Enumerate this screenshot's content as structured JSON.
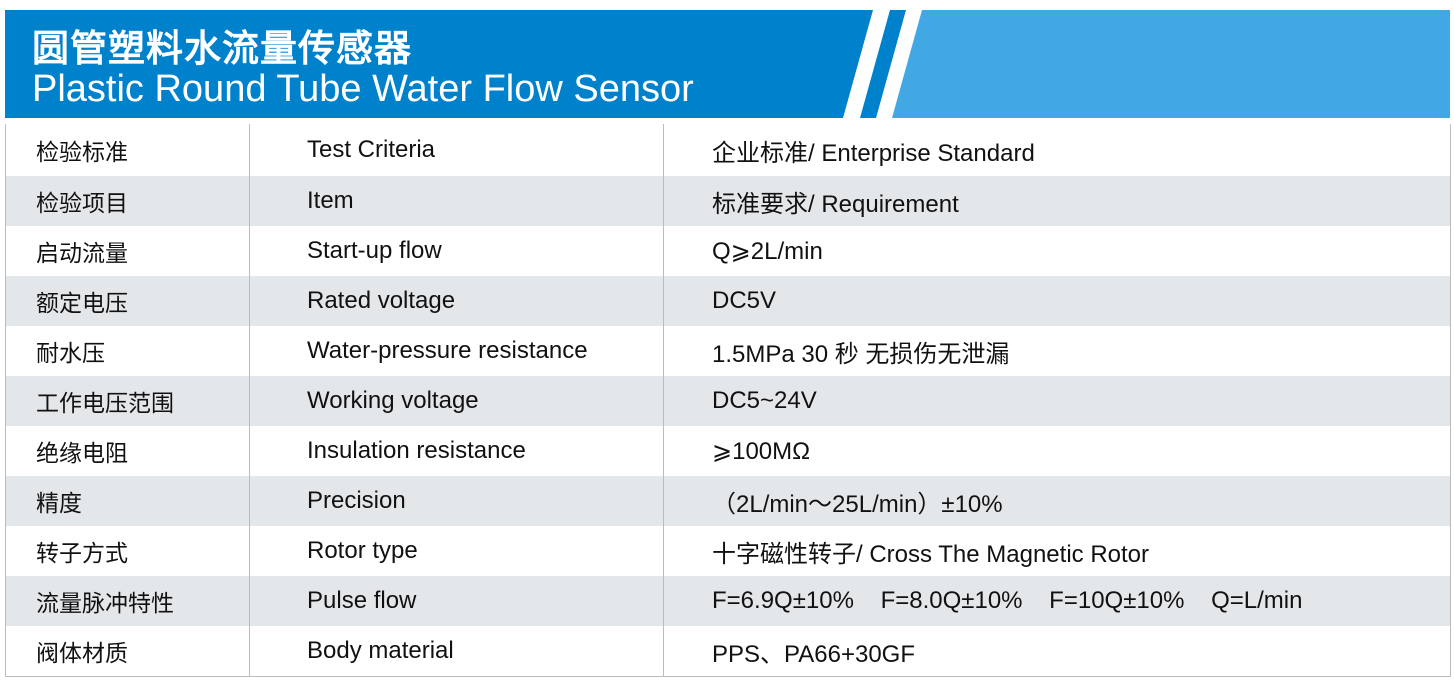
{
  "header": {
    "title_cn": "圆管塑料水流量传感器",
    "title_en": "Plastic Round Tube Water Flow Sensor",
    "colors": {
      "primary": "#0081cc",
      "secondary": "#42a8e3"
    }
  },
  "table": {
    "rows": [
      {
        "cn": "检验标准",
        "en": "Test Criteria",
        "value": "企业标准/ Enterprise Standard"
      },
      {
        "cn": "检验项目",
        "en": "Item",
        "value": "标准要求/ Requirement"
      },
      {
        "cn": "启动流量",
        "en": "Start-up flow",
        "value": "Q⩾2L/min"
      },
      {
        "cn": "额定电压",
        "en": "Rated voltage",
        "value": "DC5V"
      },
      {
        "cn": "耐水压",
        "en": "Water-pressure resistance",
        "value": "1.5MPa 30 秒 无损伤无泄漏"
      },
      {
        "cn": "工作电压范围",
        "en": "Working voltage",
        "value": "DC5~24V"
      },
      {
        "cn": "绝缘电阻",
        "en": "Insulation resistance",
        "value": "⩾100MΩ"
      },
      {
        "cn": "精度",
        "en": "Precision",
        "value": "（2L/min～25L/min）±10%"
      },
      {
        "cn": "转子方式",
        "en": "Rotor type",
        "value": "十字磁性转子/ Cross The Magnetic Rotor"
      },
      {
        "cn": "流量脉冲特性",
        "en": "Pulse flow",
        "value": "F=6.9Q±10%    F=8.0Q±10%    F=10Q±10%    Q=L/min"
      },
      {
        "cn": "阀体材质",
        "en": "Body material",
        "value": "PPS、PA66+30GF"
      }
    ]
  }
}
